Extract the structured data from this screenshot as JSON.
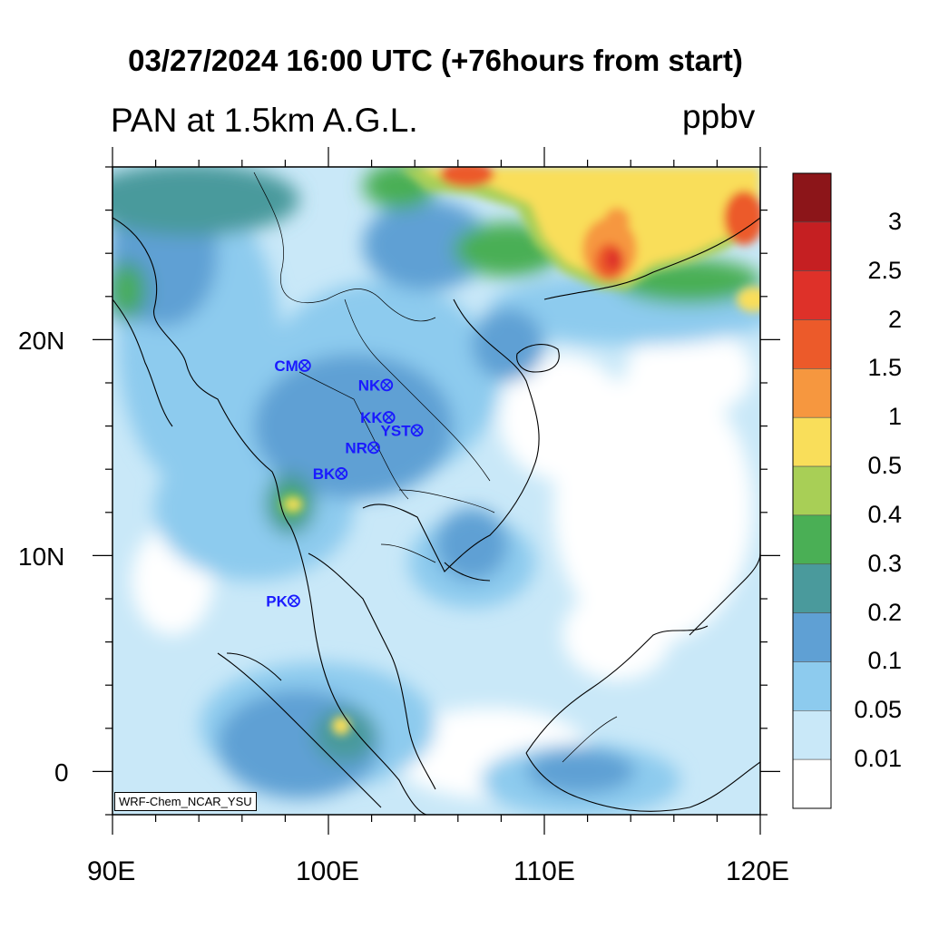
{
  "title": "03/27/2024 16:00 UTC (+76hours from start)",
  "variable_label": "PAN at 1.5km A.G.L.",
  "units": "ppbv",
  "credit": "WRF-Chem_NCAR_YSU",
  "axes": {
    "lon_labels": [
      "90E",
      "100E",
      "110E",
      "120E"
    ],
    "lat_labels": [
      "20N",
      "10N",
      "0"
    ],
    "lon_range": [
      90,
      120
    ],
    "lat_range": [
      -2,
      28
    ]
  },
  "colorbar": {
    "labels": [
      "3",
      "2.5",
      "2",
      "1.5",
      "1",
      "0.5",
      "0.4",
      "0.3",
      "0.2",
      "0.1",
      "0.05",
      "0.01"
    ],
    "colors_top_to_bottom": [
      "#8c1519",
      "#c51f22",
      "#de3129",
      "#ec5a2a",
      "#f6973f",
      "#f9de5a",
      "#a8cf56",
      "#4aaf55",
      "#4a9a9c",
      "#5fa0d4",
      "#8dcbee",
      "#c9e8f8",
      "#ffffff"
    ]
  },
  "stations": [
    {
      "name": "CM",
      "lon": 98.9,
      "lat": 18.8
    },
    {
      "name": "NK",
      "lon": 102.7,
      "lat": 17.9
    },
    {
      "name": "KK",
      "lon": 102.8,
      "lat": 16.4
    },
    {
      "name": "YST",
      "lon": 104.1,
      "lat": 15.8
    },
    {
      "name": "NR",
      "lon": 102.1,
      "lat": 15.0
    },
    {
      "name": "BK",
      "lon": 100.6,
      "lat": 13.8
    },
    {
      "name": "PK",
      "lon": 98.4,
      "lat": 7.9
    }
  ]
}
